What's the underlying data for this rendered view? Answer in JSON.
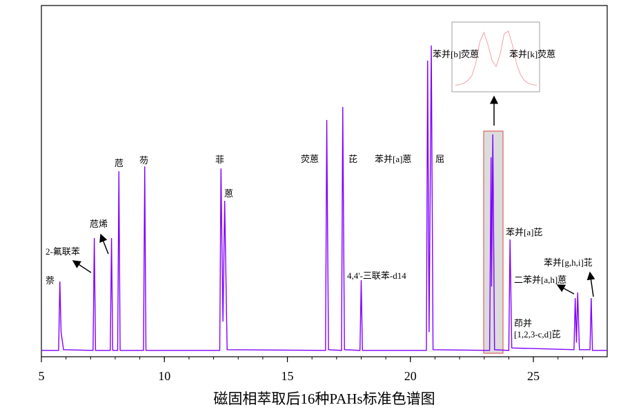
{
  "chart_data": {
    "type": "line",
    "xlabel": "磁固相萃取后16种PAHs标准色谱图",
    "xlim": [
      5,
      28
    ],
    "xticks": [
      5,
      10,
      15,
      20,
      25
    ],
    "ylim": [
      0,
      100
    ],
    "series": [
      {
        "color": "#8000ff",
        "x": [
          5,
          5.7,
          5.75,
          5.8,
          5.9,
          7.1,
          7.15,
          7.2,
          7.8,
          7.85,
          7.9,
          8.1,
          8.15,
          8.2,
          9.15,
          9.2,
          9.25,
          12.25,
          12.3,
          12.38,
          12.45,
          12.55,
          16.55,
          16.6,
          16.67,
          17.2,
          17.25,
          17.32,
          17.95,
          18.0,
          18.05,
          20.65,
          20.7,
          20.76,
          20.85,
          20.92,
          23.22,
          23.28,
          23.3,
          23.35,
          23.42,
          24.0,
          24.05,
          24.12,
          26.65,
          26.7,
          26.75,
          26.8,
          26.87,
          27.3,
          27.35,
          27.4,
          28
        ],
        "values": [
          1.8,
          1.8,
          21.4,
          7,
          2,
          1.8,
          33.8,
          1.8,
          1.8,
          33.8,
          1.8,
          1.8,
          52.8,
          1.8,
          1.8,
          54.2,
          1.8,
          1.8,
          53.6,
          10,
          44.4,
          2,
          1.8,
          67.4,
          2,
          1.8,
          71.1,
          2,
          1.8,
          21.8,
          1.8,
          1.8,
          84.3,
          7,
          88.6,
          2,
          1.8,
          56.8,
          20,
          63.3,
          2,
          1.8,
          33.4,
          2.5,
          2,
          16.7,
          4,
          18.3,
          2,
          2,
          16.7,
          1.8,
          1.8
        ]
      }
    ],
    "annotations": [
      "萘",
      "2-氟联苯",
      "苊烯",
      "苊",
      "芴",
      "菲",
      "蒽",
      "荧蒽",
      "芘",
      "4,4'-三联苯-d14",
      "苯并[a]蒽",
      "屈",
      "苯并[b]荧蒽",
      "苯并[k]荧蒽",
      "苯并[a]芘",
      "苯并[g,h,i]苝",
      "二苯并[a,h]蒽",
      "茚并",
      "[1,2,3-c,d]芘"
    ],
    "inset": {
      "color": "#f4a0a8",
      "ylim": [
        0,
        100
      ],
      "values": [
        5,
        6,
        8,
        12,
        20,
        40,
        75,
        90,
        70,
        45,
        35,
        55,
        88,
        92,
        70,
        40,
        22,
        12,
        8,
        6,
        5
      ]
    }
  }
}
